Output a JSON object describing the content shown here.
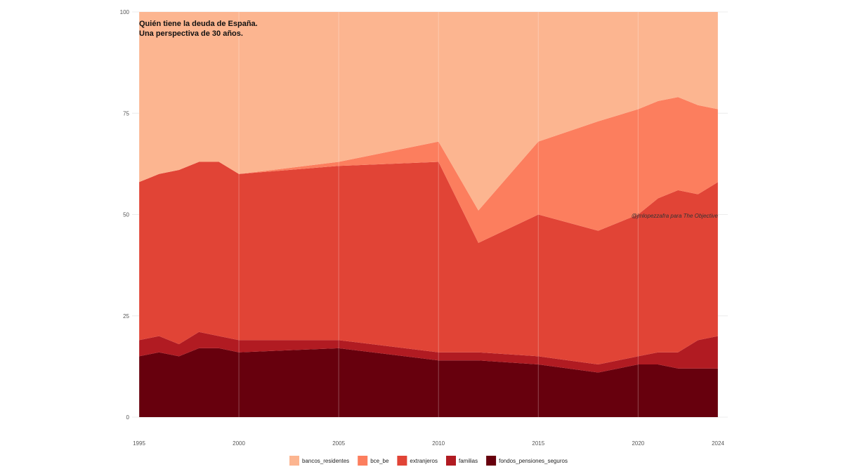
{
  "chart_data": {
    "type": "area",
    "stacked": true,
    "title_lines": [
      "Quién tiene la deuda de España.",
      "Una perspectiva de 30 años."
    ],
    "annotation": "@jmlopezzafra para The Objective",
    "xlabel": "",
    "ylabel": "",
    "ylim": [
      0,
      100
    ],
    "yticks": [
      0,
      25,
      50,
      75,
      100
    ],
    "xlim": [
      1995,
      2024
    ],
    "xticks": [
      1995,
      2000,
      2005,
      2010,
      2015,
      2020,
      2024
    ],
    "grid": true,
    "legend_position": "bottom",
    "x": [
      1995,
      1996,
      1997,
      1998,
      1999,
      2000,
      2005,
      2010,
      2012,
      2015,
      2018,
      2020,
      2021,
      2022,
      2023,
      2024
    ],
    "series": [
      {
        "name": "fondos_pensiones_seguros",
        "color": "#67000d",
        "values": [
          15,
          16,
          15,
          17,
          17,
          16,
          17,
          14,
          14,
          13,
          11,
          13,
          13,
          12,
          12,
          12
        ]
      },
      {
        "name": "familias",
        "color": "#b11b22",
        "values": [
          4,
          4,
          3,
          4,
          3,
          3,
          2,
          2,
          2,
          2,
          2,
          2,
          3,
          4,
          7,
          8
        ]
      },
      {
        "name": "extranjeros",
        "color": "#e14436",
        "values": [
          39,
          40,
          43,
          42,
          43,
          41,
          43,
          47,
          27,
          35,
          33,
          35,
          38,
          40,
          36,
          38
        ]
      },
      {
        "name": "bce_be",
        "color": "#fc7e5e",
        "values": [
          0,
          0,
          0,
          0,
          0,
          0,
          1,
          5,
          8,
          18,
          27,
          26,
          24,
          23,
          22,
          18
        ]
      },
      {
        "name": "bancos_residentes",
        "color": "#fcb590",
        "values": [
          42,
          40,
          39,
          37,
          37,
          40,
          37,
          32,
          49,
          32,
          27,
          24,
          22,
          21,
          23,
          24
        ]
      }
    ],
    "legend_order": [
      "bancos_residentes",
      "bce_be",
      "extranjeros",
      "familias",
      "fondos_pensiones_seguros"
    ]
  }
}
